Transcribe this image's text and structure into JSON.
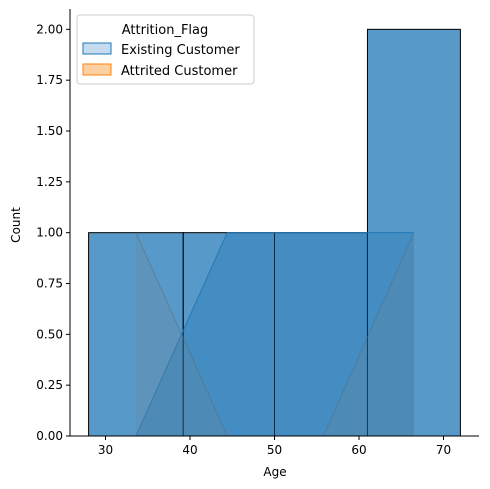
{
  "chart_data": {
    "type": "histogram",
    "xlabel": "Age",
    "ylabel": "Count",
    "xlim": [
      25.8,
      74.2
    ],
    "ylim": [
      0,
      2.1
    ],
    "xticks": [
      30,
      40,
      50,
      60,
      70
    ],
    "yticks": [
      0.0,
      0.25,
      0.5,
      0.75,
      1.0,
      1.25,
      1.5,
      1.75,
      2.0
    ],
    "ytick_labels": [
      "0.00",
      "0.25",
      "0.50",
      "0.75",
      "1.00",
      "1.25",
      "1.50",
      "1.75",
      "2.00"
    ],
    "grid": false,
    "legend": {
      "title": "Attrition_Flag",
      "placement": "top-left",
      "entries": [
        {
          "label": "Existing Customer",
          "fill": "#c6dbef",
          "edge": "#1f77b4"
        },
        {
          "label": "Attrited Customer",
          "fill": "#fdd0a2",
          "edge": "#ff7f0e"
        }
      ]
    },
    "bars": [
      {
        "x0": 28.0,
        "x1": 39.2,
        "count": 1
      },
      {
        "x0": 39.2,
        "x1": 50.0,
        "count": 1
      },
      {
        "x0": 50.0,
        "x1": 61.0,
        "count": 1
      },
      {
        "x0": 61.0,
        "x1": 72.0,
        "count": 2
      }
    ],
    "series": [
      {
        "name": "Existing Customer",
        "x": [
          33.6,
          44.4,
          55.8,
          66.5
        ],
        "y": [
          0,
          1,
          1,
          1
        ],
        "color": "#1f77b4"
      },
      {
        "name": "Attrited Customer",
        "x": [
          33.6,
          44.4,
          55.8,
          66.5
        ],
        "y": [
          1,
          0,
          0,
          1
        ],
        "color": "#ff7f0e"
      }
    ],
    "bar_color": "#3a87c0"
  }
}
